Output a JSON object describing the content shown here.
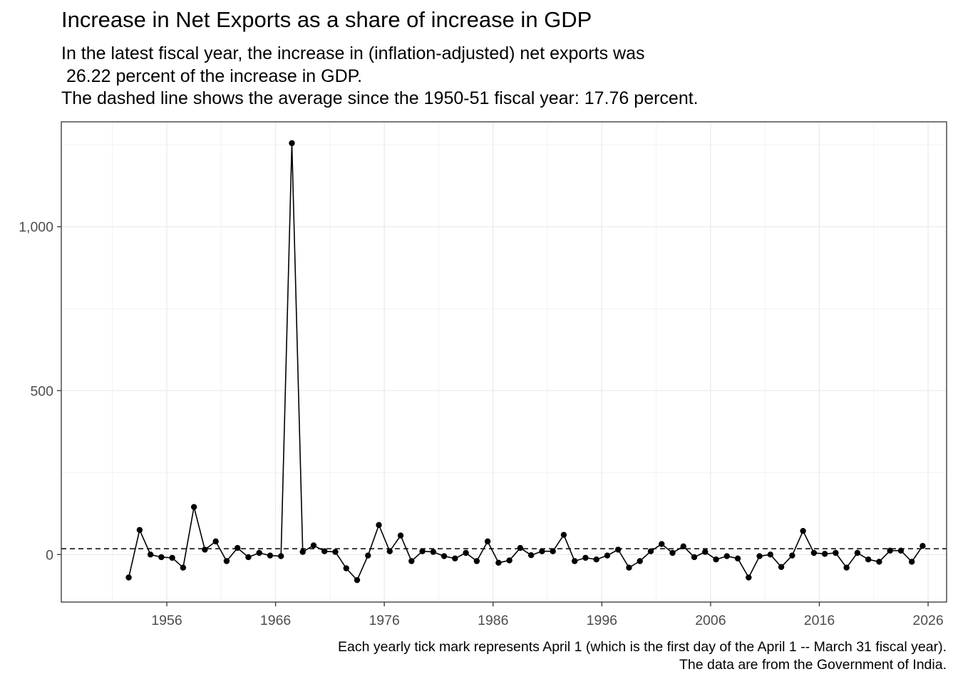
{
  "title": "Increase in Net Exports as a share of increase in GDP",
  "subtitle_lines": [
    "In the latest fiscal year, the increase in (inflation-adjusted) net exports was",
    " 26.22 percent of the increase in GDP.",
    "The dashed line shows the average since the 1950-51 fiscal year: 17.76 percent."
  ],
  "caption_lines": [
    "Each yearly tick mark represents April 1 (which is the first day of the April 1 -- March 31 fiscal year).",
    "The data are from the Government of India."
  ],
  "chart_data": {
    "type": "line",
    "title": "Increase in Net Exports as a share of increase in GDP",
    "xlabel": "",
    "ylabel": "",
    "x_ticks": [
      1956,
      1966,
      1976,
      1986,
      1996,
      2006,
      2016,
      2026
    ],
    "y_ticks": [
      0,
      500,
      1000
    ],
    "y_tick_labels": [
      "0",
      "500",
      "1,000"
    ],
    "xlim": [
      1946.3,
      2027.7
    ],
    "ylim": [
      -145,
      1320
    ],
    "grid": true,
    "legend": "none",
    "reference_line": {
      "style": "dashed",
      "value": 17.76
    },
    "series": [
      {
        "points": [
          [
            1952.5,
            -70
          ],
          [
            1953.5,
            75
          ],
          [
            1954.5,
            0
          ],
          [
            1955.5,
            -8
          ],
          [
            1956.5,
            -10
          ],
          [
            1957.5,
            -40
          ],
          [
            1958.5,
            145
          ],
          [
            1959.5,
            15
          ],
          [
            1960.5,
            40
          ],
          [
            1961.5,
            -20
          ],
          [
            1962.5,
            20
          ],
          [
            1963.5,
            -8
          ],
          [
            1964.5,
            5
          ],
          [
            1965.5,
            -3
          ],
          [
            1966.5,
            -5
          ],
          [
            1967.5,
            1255
          ],
          [
            1968.5,
            8
          ],
          [
            1969.5,
            28
          ],
          [
            1970.5,
            10
          ],
          [
            1971.5,
            8
          ],
          [
            1972.5,
            -42
          ],
          [
            1973.5,
            -78
          ],
          [
            1974.5,
            -3
          ],
          [
            1975.5,
            90
          ],
          [
            1976.5,
            10
          ],
          [
            1977.5,
            58
          ],
          [
            1978.5,
            -20
          ],
          [
            1979.5,
            10
          ],
          [
            1980.5,
            8
          ],
          [
            1981.5,
            -5
          ],
          [
            1982.5,
            -12
          ],
          [
            1983.5,
            5
          ],
          [
            1984.5,
            -20
          ],
          [
            1985.5,
            40
          ],
          [
            1986.5,
            -25
          ],
          [
            1987.5,
            -18
          ],
          [
            1988.5,
            20
          ],
          [
            1989.5,
            -2
          ],
          [
            1990.5,
            10
          ],
          [
            1991.5,
            10
          ],
          [
            1992.5,
            60
          ],
          [
            1993.5,
            -20
          ],
          [
            1994.5,
            -10
          ],
          [
            1995.5,
            -15
          ],
          [
            1996.5,
            -3
          ],
          [
            1997.5,
            15
          ],
          [
            1998.5,
            -40
          ],
          [
            1999.5,
            -20
          ],
          [
            2000.5,
            10
          ],
          [
            2001.5,
            32
          ],
          [
            2002.5,
            5
          ],
          [
            2003.5,
            25
          ],
          [
            2004.5,
            -8
          ],
          [
            2005.5,
            8
          ],
          [
            2006.5,
            -15
          ],
          [
            2007.5,
            -5
          ],
          [
            2008.5,
            -12
          ],
          [
            2009.5,
            -70
          ],
          [
            2010.5,
            -5
          ],
          [
            2011.5,
            0
          ],
          [
            2012.5,
            -38
          ],
          [
            2013.5,
            -3
          ],
          [
            2014.5,
            72
          ],
          [
            2015.5,
            5
          ],
          [
            2016.5,
            2
          ],
          [
            2017.5,
            5
          ],
          [
            2018.5,
            -40
          ],
          [
            2019.5,
            5
          ],
          [
            2020.5,
            -15
          ],
          [
            2021.5,
            -22
          ],
          [
            2022.5,
            12
          ],
          [
            2023.5,
            12
          ],
          [
            2024.5,
            -22
          ],
          [
            2025.5,
            26.22
          ]
        ]
      }
    ]
  }
}
